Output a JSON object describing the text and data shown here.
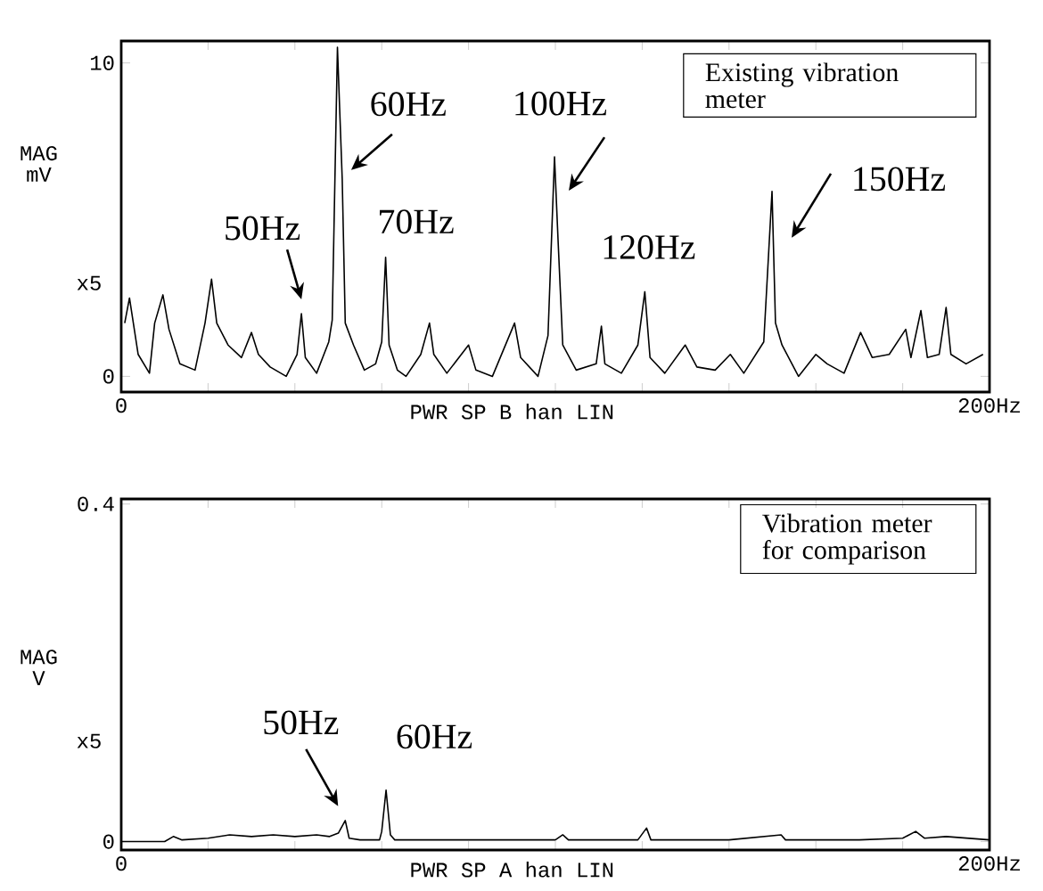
{
  "chart_data": [
    {
      "type": "line",
      "title": "Existing vibration meter",
      "xlabel": "PWR SP B han LIN",
      "ylabel": "MAG mV",
      "color": "#000000",
      "x": [
        0.8,
        1.9,
        3.9,
        6.5,
        7.7,
        9.6,
        11,
        13.5,
        17,
        19.3,
        20.8,
        22,
        24.6,
        27.7,
        30,
        31.6,
        34.3,
        38,
        40.5,
        41.5,
        42.4,
        45,
        47.8,
        48.6,
        49.8,
        50.9,
        51.6,
        53.5,
        56,
        58.6,
        60,
        60.9,
        61.7,
        63.6,
        65.6,
        69,
        71,
        72,
        75,
        80,
        81.7,
        85.5,
        90.6,
        92,
        96,
        98.3,
        99.8,
        100.6,
        101.7,
        104.8,
        109.4,
        110.6,
        111.4,
        115.2,
        119,
        120.6,
        121.8,
        125.2,
        129.9,
        132.6,
        136.8,
        140.3,
        143.4,
        148,
        149.9,
        150.7,
        152.2,
        156,
        160,
        162.6,
        166.5,
        170.3,
        173,
        176.9,
        180.7,
        181.9,
        184.2,
        185.7,
        188.4,
        190,
        191.1,
        194.6,
        198.5
      ],
      "values": [
        1.7,
        2.5,
        0.7,
        0.1,
        1.7,
        2.6,
        1.5,
        0.4,
        0.2,
        1.7,
        3.1,
        1.7,
        1.0,
        0.6,
        1.4,
        0.7,
        0.3,
        0,
        0.7,
        2.0,
        0.6,
        0.1,
        1.1,
        1.8,
        10.5,
        6.3,
        1.7,
        1.0,
        0.2,
        0.4,
        1.1,
        3.8,
        1.0,
        0.2,
        0,
        0.7,
        1.7,
        0.7,
        0.1,
        1.0,
        0.2,
        0,
        1.7,
        0.6,
        0,
        1.3,
        7.0,
        4.4,
        1.0,
        0.2,
        0.4,
        1.6,
        0.4,
        0.1,
        1.0,
        2.7,
        0.6,
        0.1,
        1.0,
        0.3,
        0.2,
        0.7,
        0.1,
        1.1,
        5.9,
        1.7,
        1.0,
        0,
        0.7,
        0.4,
        0.1,
        1.4,
        0.6,
        0.7,
        1.5,
        0.6,
        2.1,
        0.6,
        0.7,
        2.2,
        0.7,
        0.4,
        0.7
      ],
      "xlim": [
        0,
        200
      ],
      "ylim": [
        -0.5,
        10.7
      ],
      "xticks": [
        {
          "value": 0,
          "label": "0"
        },
        {
          "value": 20,
          "label": null
        },
        {
          "value": 40,
          "label": null
        },
        {
          "value": 60,
          "label": null
        },
        {
          "value": 80,
          "label": null
        },
        {
          "value": 100,
          "label": null
        },
        {
          "value": 120,
          "label": null
        },
        {
          "value": 140,
          "label": null
        },
        {
          "value": 160,
          "label": null
        },
        {
          "value": 180,
          "label": null
        },
        {
          "value": 200,
          "label": "200Hz"
        }
      ],
      "yticks": [
        0,
        10
      ],
      "annotations": [
        "x5",
        {
          "text": "50Hz",
          "x": 41.5,
          "y": 2.0
        },
        {
          "text": "60Hz",
          "x": 50.9,
          "y": 6.3
        },
        {
          "text": "70Hz",
          "x": 60.9,
          "y": 3.8
        },
        {
          "text": "100Hz",
          "x": 99.8,
          "y": 7.0
        },
        {
          "text": "120Hz",
          "x": 120.6,
          "y": 2.7
        },
        {
          "text": "150Hz",
          "x": 149.9,
          "y": 5.9
        }
      ]
    },
    {
      "type": "line",
      "title": "Vibration meter for comparison",
      "xlabel": "PWR SP A han LIN",
      "ylabel": "MAG V",
      "color": "#000000",
      "x": [
        0,
        10,
        12,
        14,
        20,
        25,
        30,
        35,
        40,
        45,
        48,
        50,
        51.6,
        52.5,
        55,
        59.5,
        60,
        61,
        62,
        63,
        80,
        100,
        101.7,
        103,
        119,
        121,
        122,
        140,
        152,
        153,
        170,
        180,
        183,
        185,
        190,
        200
      ],
      "values": [
        0,
        0,
        0.006,
        0.002,
        0.004,
        0.008,
        0.006,
        0.008,
        0.006,
        0.008,
        0.006,
        0.01,
        0.025,
        0.004,
        0.002,
        0.002,
        0.012,
        0.061,
        0.008,
        0.002,
        0.002,
        0.002,
        0.008,
        0.002,
        0.002,
        0.016,
        0.002,
        0.002,
        0.008,
        0.002,
        0.002,
        0.004,
        0.012,
        0.004,
        0.006,
        0.002
      ],
      "xlim": [
        0,
        200
      ],
      "ylim": [
        -0.01,
        0.406
      ],
      "xticks": [
        {
          "value": 0,
          "label": "0"
        },
        {
          "value": 20,
          "label": null
        },
        {
          "value": 40,
          "label": null
        },
        {
          "value": 60,
          "label": null
        },
        {
          "value": 80,
          "label": null
        },
        {
          "value": 100,
          "label": null
        },
        {
          "value": 120,
          "label": null
        },
        {
          "value": 140,
          "label": null
        },
        {
          "value": 160,
          "label": null
        },
        {
          "value": 180,
          "label": null
        },
        {
          "value": 200,
          "label": "200Hz"
        }
      ],
      "yticks": [
        0,
        0.4
      ],
      "annotations": [
        "x5",
        {
          "text": "50Hz",
          "x": 51.6,
          "y": 0.025
        },
        {
          "text": "60Hz",
          "x": 61,
          "y": 0.061
        }
      ]
    }
  ]
}
